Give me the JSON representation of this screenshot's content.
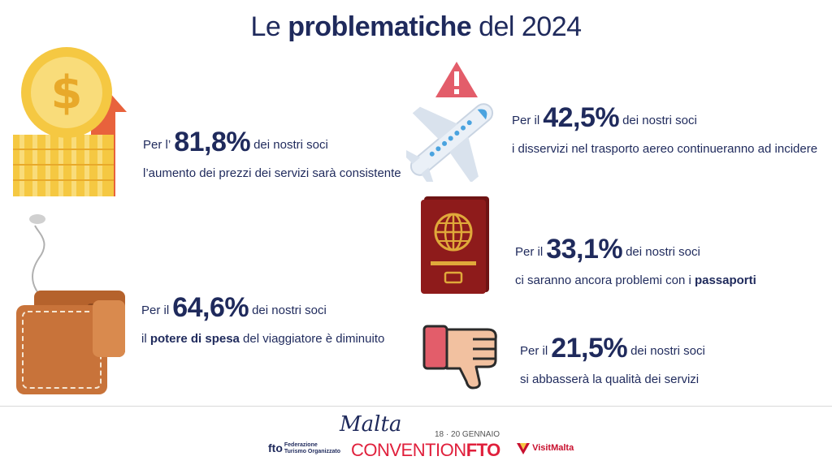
{
  "title": {
    "pre": "Le ",
    "bold": "problematiche",
    "post": " del 2024"
  },
  "stats": [
    {
      "prefix": "Per l’",
      "pct": "81,8%",
      "suffix": "dei nostri soci",
      "line2": "l’aumento dei prezzi dei servizi sarà consistente"
    },
    {
      "prefix": "Per il",
      "pct": "42,5%",
      "suffix": "dei nostri soci",
      "line2": "i disservizi nel trasporto aereo continueranno ad incidere"
    },
    {
      "prefix": "Per il",
      "pct": "33,1%",
      "suffix": "dei nostri soci",
      "line2_pre": "ci saranno ancora problemi con i ",
      "line2_bold": "passaporti"
    },
    {
      "prefix": "Per il",
      "pct": "64,6%",
      "suffix": "dei nostri soci",
      "line2_bold": "potere di spesa",
      "line2_post": " del viaggiatore è diminuito",
      "line2_pre": "il "
    },
    {
      "prefix": "Per il",
      "pct": "21,5%",
      "suffix": "dei nostri soci",
      "line2": "si abbasserà la qualità dei servizi"
    }
  ],
  "footer": {
    "fto": "fto",
    "fto_sub1": "Federazione",
    "fto_sub2": "Turismo Organizzato",
    "malta": "Malta",
    "dates": "18 · 20 GENNAIO",
    "convention": "CONVENTION",
    "convention_bold": "FTO",
    "visitmalta": "VisitMalta"
  },
  "colors": {
    "navy": "#1f2a5c",
    "gold": "#f5c842",
    "orange": "#e8623c",
    "wallet": "#c8733a",
    "red": "#8e1b1b",
    "pink": "#e35d6a"
  }
}
